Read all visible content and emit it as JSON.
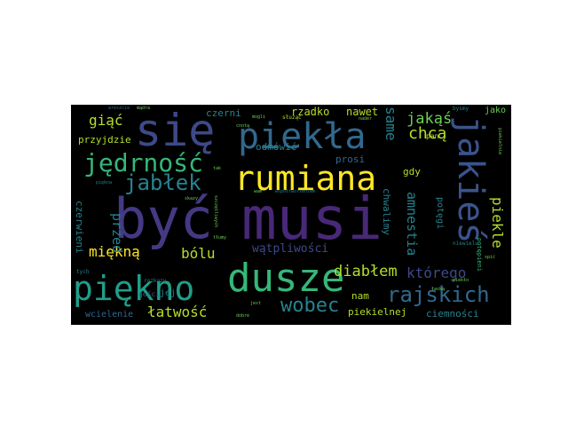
{
  "palette": {
    "dark_purple": "#440154",
    "purple": "#482878",
    "blue": "#3e4989",
    "slate": "#31688e",
    "teal": "#26828e",
    "green_teal": "#1f9e89",
    "green": "#35b779",
    "light_green": "#6ece58",
    "yellow_green": "#b5de2b",
    "yellow": "#fde725"
  },
  "words": [
    "być",
    "musi",
    "się",
    "piekła",
    "jakieś",
    "rumiana",
    "dusze",
    "piękno",
    "jędrność",
    "jabłek",
    "rajskich",
    "wobec",
    "diabłem",
    "giąć",
    "miękną",
    "bólu",
    "łatwość",
    "chcą",
    "jakąś",
    "same",
    "amnestia",
    "piekle",
    "przed",
    "którego",
    "wątpliwości",
    "czerni",
    "rzadko",
    "nawet",
    "przyjdzie",
    "odmówić",
    "prosi",
    "gdy",
    "chwalimy",
    "potęgi",
    "czerwieni",
    "nam",
    "piekielnej",
    "ciemności",
    "wcielenie",
    "jej",
    "gości",
    "pan",
    "jako",
    "bysmy",
    "mogli",
    "służąc",
    "tak",
    "nader",
    "współtworzeniem",
    "szczęśliwych",
    "tłumy",
    "skazy",
    "potępieni",
    "piekielnie",
    "niewielu",
    "piekło",
    "łaską",
    "spić",
    "rozkazy",
    "tych",
    "jest",
    "dobre",
    "wreszcie",
    "mądra",
    "cnotą",
    "piękna",
    "wam"
  ]
}
